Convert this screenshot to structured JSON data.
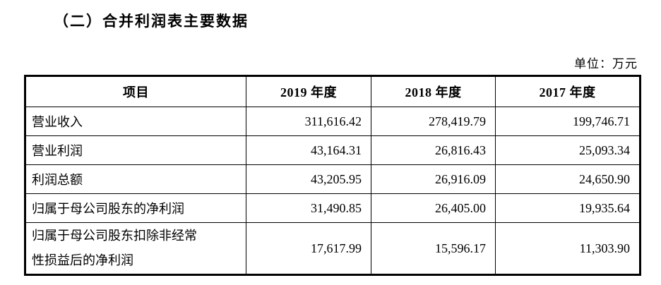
{
  "page": {
    "title": "（二）合并利润表主要数据",
    "unit_label": "单位：万元"
  },
  "table": {
    "columns": [
      "项目",
      "2019 年度",
      "2018 年度",
      "2017 年度"
    ],
    "rows": [
      {
        "label": "营业收入",
        "values": [
          "311,616.42",
          "278,419.79",
          "199,746.71"
        ]
      },
      {
        "label": "营业利润",
        "values": [
          "43,164.31",
          "26,816.43",
          "25,093.34"
        ]
      },
      {
        "label": "利润总额",
        "values": [
          "43,205.95",
          "26,916.09",
          "24,650.90"
        ]
      },
      {
        "label": "归属于母公司股东的净利润",
        "values": [
          "31,490.85",
          "26,405.00",
          "19,935.64"
        ]
      },
      {
        "label": "归属于母公司股东扣除非经常性损益后的净利润",
        "values": [
          "17,617.99",
          "15,596.17",
          "11,303.90"
        ]
      }
    ],
    "colors": {
      "border": "#000000",
      "text": "#000000",
      "background": "#ffffff"
    }
  }
}
